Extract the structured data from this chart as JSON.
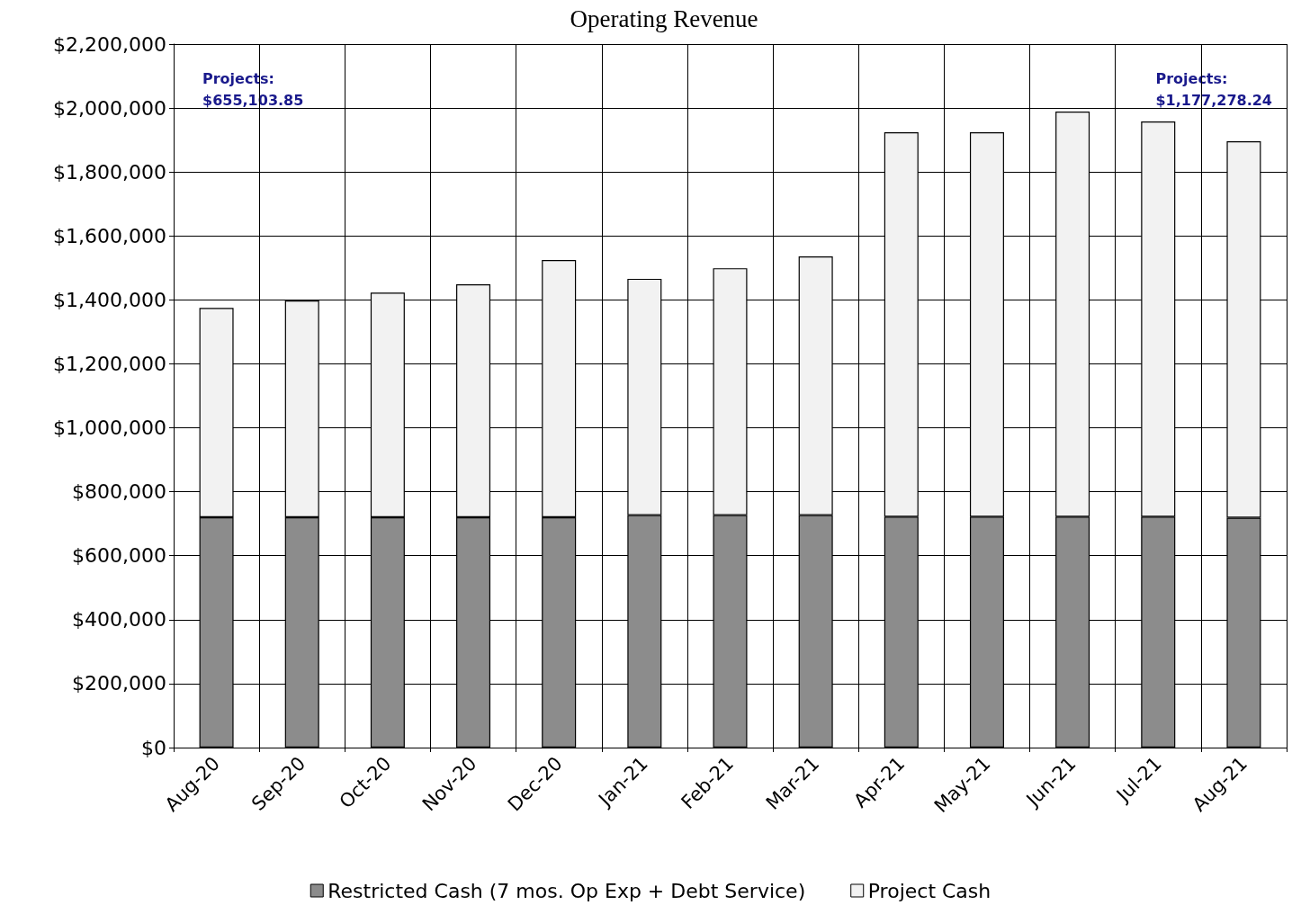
{
  "chart_data": {
    "type": "bar",
    "title": "Operating Revenue",
    "categories": [
      "Aug-20",
      "Sep-20",
      "Oct-20",
      "Nov-20",
      "Dec-20",
      "Jan-21",
      "Feb-21",
      "Mar-21",
      "Apr-21",
      "May-21",
      "Jun-21",
      "Jul-21",
      "Aug-21"
    ],
    "series": [
      {
        "name": "Restricted Cash (7 mos. Op Exp + Debt Service)",
        "color": "#8c8c8c",
        "values": [
          720000,
          720000,
          720000,
          720000,
          720000,
          727000,
          727000,
          727000,
          722000,
          722000,
          722000,
          722000,
          719000
        ]
      },
      {
        "name": "Project Cash",
        "color": "#f2f2f2",
        "values": [
          655000,
          678000,
          703000,
          729000,
          805000,
          739000,
          772000,
          809000,
          1202000,
          1202000,
          1267000,
          1236000,
          1177000
        ]
      }
    ],
    "stacked": true,
    "ylim": [
      0,
      2200000
    ],
    "yticks": [
      {
        "value": 0,
        "label": "$0"
      },
      {
        "value": 200000,
        "label": "$200,000"
      },
      {
        "value": 400000,
        "label": "$400,000"
      },
      {
        "value": 600000,
        "label": "$600,000"
      },
      {
        "value": 800000,
        "label": "$800,000"
      },
      {
        "value": 1000000,
        "label": "$1,000,000"
      },
      {
        "value": 1200000,
        "label": "$1,200,000"
      },
      {
        "value": 1400000,
        "label": "$1,400,000"
      },
      {
        "value": 1600000,
        "label": "$1,600,000"
      },
      {
        "value": 1800000,
        "label": "$1,800,000"
      },
      {
        "value": 2000000,
        "label": "$2,000,000"
      },
      {
        "value": 2200000,
        "label": "$2,200,000"
      }
    ],
    "annotations": [
      "Projects:\n$655,103.85",
      "Projects:\n$1,177,278.24"
    ],
    "grid": true,
    "legend": "bottom"
  }
}
